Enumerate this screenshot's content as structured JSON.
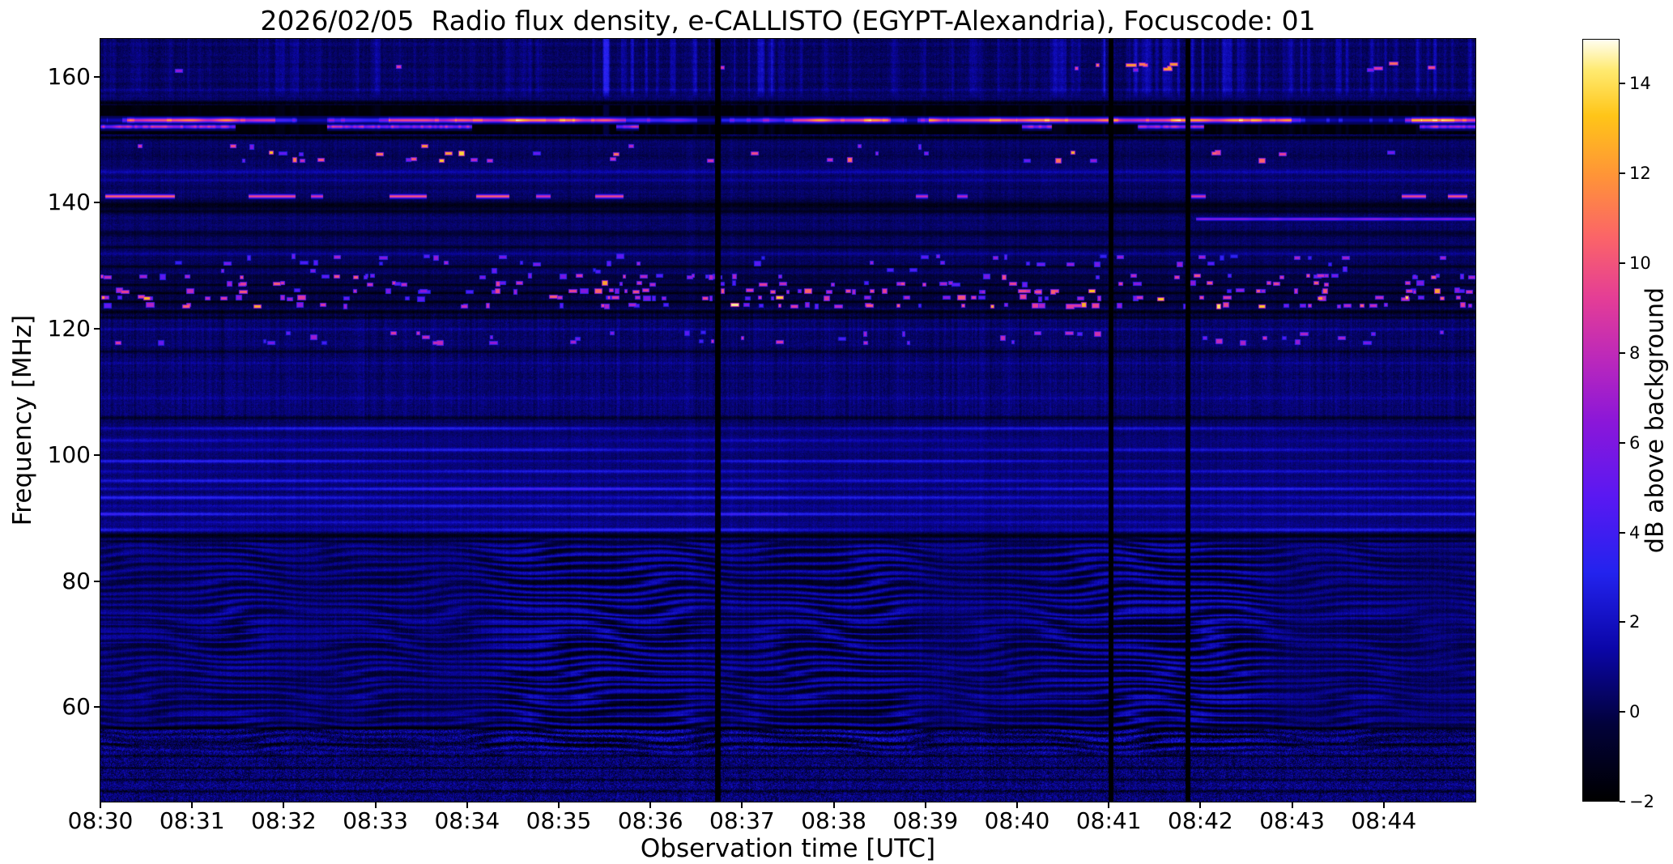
{
  "chart_data": {
    "type": "heatmap",
    "title": "2026/02/05  Radio flux density, e-CALLISTO (EGYPT-Alexandria), Focuscode: 01",
    "xlabel": "Observation time [UTC]",
    "ylabel": "Frequency [MHz]",
    "x_ticks": [
      "08:30",
      "08:31",
      "08:32",
      "08:33",
      "08:34",
      "08:35",
      "08:36",
      "08:37",
      "08:38",
      "08:39",
      "08:40",
      "08:41",
      "08:42",
      "08:43",
      "08:44"
    ],
    "x_range_minutes_after_0830": [
      0,
      15
    ],
    "y_ticks": [
      160,
      140,
      120,
      100,
      80,
      60
    ],
    "ylim_mhz": [
      45,
      166
    ],
    "grid": false,
    "colorbar": {
      "label": "dB above background",
      "ticks": [
        "14",
        "12",
        "10",
        "8",
        "6",
        "4",
        "2",
        "0",
        "−2"
      ],
      "tick_values": [
        14,
        12,
        10,
        8,
        6,
        4,
        2,
        0,
        -2
      ],
      "vmin": -2,
      "vmax": 15,
      "colormap_stops": [
        [
          0.0,
          "#000000"
        ],
        [
          0.1,
          "#02023a"
        ],
        [
          0.2,
          "#0b06a8"
        ],
        [
          0.3,
          "#2323ee"
        ],
        [
          0.4,
          "#5a18f2"
        ],
        [
          0.5,
          "#8c17d8"
        ],
        [
          0.58,
          "#bb28bb"
        ],
        [
          0.66,
          "#e43d96"
        ],
        [
          0.74,
          "#fb6468"
        ],
        [
          0.82,
          "#ff9338"
        ],
        [
          0.9,
          "#ffc518"
        ],
        [
          0.96,
          "#ffea70"
        ],
        [
          1.0,
          "#fffef0"
        ]
      ]
    },
    "render": {
      "seed": 20260205,
      "noise_floor_db": {
        "base": 0.55,
        "pixel_sd": 0.42,
        "column_sd": 0.22,
        "row_sd": 0.3
      },
      "dark_rows": [
        [
          155.9,
          0.5,
          2.2
        ],
        [
          150.4,
          0.4,
          2.2
        ],
        [
          139.6,
          0.8,
          1.8
        ],
        [
          138.7,
          0.4,
          1.4
        ],
        [
          135.2,
          0.6,
          0.9
        ],
        [
          133.0,
          0.3,
          1.1
        ],
        [
          129.9,
          0.35,
          1.3
        ],
        [
          122.7,
          0.5,
          1.9
        ],
        [
          121.8,
          0.3,
          1.4
        ],
        [
          116.4,
          0.3,
          1.1
        ],
        [
          105.9,
          0.4,
          1.4
        ],
        [
          87.2,
          0.5,
          1.9
        ],
        [
          86.3,
          0.3,
          1.3
        ],
        [
          56.6,
          0.35,
          1.9
        ],
        [
          54.0,
          0.3,
          1.5
        ],
        [
          52.2,
          0.3,
          1.5
        ],
        [
          50.3,
          0.3,
          1.5
        ],
        [
          48.4,
          0.3,
          1.4
        ],
        [
          46.6,
          0.3,
          1.3
        ],
        [
          124.3,
          0.25,
          1.4
        ],
        [
          125.7,
          0.25,
          1.4
        ],
        [
          127.0,
          0.25,
          1.4
        ]
      ],
      "bright_rows": [
        [
          144.9,
          0.4,
          1.3
        ],
        [
          143.6,
          0.3,
          0.9
        ],
        [
          131.9,
          0.35,
          0.8
        ],
        [
          119.9,
          0.3,
          0.7
        ],
        [
          114.6,
          0.35,
          0.6
        ],
        [
          109.0,
          0.4,
          0.7
        ],
        [
          158.0,
          0.3,
          0.6
        ]
      ],
      "horizontal_stripe_lines": [
        [
          88.1,
          2.2
        ],
        [
          89.3,
          1.4
        ],
        [
          90.6,
          2.6
        ],
        [
          91.9,
          1.6
        ],
        [
          93.2,
          2.0
        ],
        [
          94.6,
          2.8
        ],
        [
          95.9,
          1.8
        ],
        [
          97.4,
          1.5
        ],
        [
          99.0,
          2.2
        ],
        [
          100.8,
          1.7
        ],
        [
          102.3,
          1.3
        ],
        [
          104.2,
          1.9
        ]
      ],
      "wave_region": {
        "f_range": [
          54,
          85
        ],
        "stripe_rad_per_mhz": 5.7,
        "undulation": [
          [
            2.51,
            2.6,
            0.33
          ],
          [
            5.3,
            1.2,
            0.11
          ]
        ],
        "amplitude": 1.05
      },
      "speckle_region": {
        "f_range": [
          45,
          56.5
        ],
        "amplitude": 1.15
      },
      "texture_region": {
        "f_range": [
          106,
          122.5
        ],
        "pixel_sd": 0.45,
        "column_sd": 0.3
      },
      "band_153": {
        "black_range": [
          150.9,
          155.5
        ],
        "line_mhz": 153.15,
        "line_db": [
          9,
          15
        ],
        "secondary_mhz": 152.1
      },
      "line_137": {
        "mhz": 137.45,
        "t_start": 11.95,
        "db": 6.3
      },
      "segments_141": [
        [
          0.05,
          0.75,
          11
        ],
        [
          1.62,
          0.5,
          10
        ],
        [
          2.3,
          0.12,
          9
        ],
        [
          3.15,
          0.4,
          10.5
        ],
        [
          4.1,
          0.35,
          11
        ],
        [
          4.75,
          0.15,
          9
        ],
        [
          5.4,
          0.3,
          10
        ],
        [
          8.9,
          0.12,
          8.5
        ],
        [
          9.35,
          0.1,
          8
        ],
        [
          11.9,
          0.15,
          9
        ],
        [
          14.2,
          0.25,
          10
        ],
        [
          14.7,
          0.2,
          10.5
        ]
      ],
      "dot_bands": [
        {
          "f_rows": [
            123.7,
            124.9,
            126.0,
            127.2,
            128.3
          ],
          "count": 260,
          "db": [
            4.5,
            10.5
          ],
          "hot_fraction": 0.09,
          "hot_db": [
            12,
            14.5
          ]
        },
        {
          "f_rows": [
            129.3,
            130.4,
            131.4
          ],
          "count": 50,
          "db": [
            3.5,
            7.5
          ],
          "hot_fraction": 0.0,
          "hot_db": [
            0,
            0
          ]
        },
        {
          "f_rows": [
            117.9,
            118.6,
            119.3
          ],
          "count": 45,
          "db": [
            3.5,
            9
          ],
          "hot_fraction": 0.05,
          "hot_db": [
            11,
            13
          ]
        },
        {
          "f_rows": [
            146.8,
            147.9,
            148.9
          ],
          "count": 40,
          "db": [
            5,
            12
          ],
          "hot_fraction": 0.1,
          "hot_db": [
            12,
            14
          ]
        }
      ],
      "dots_161": {
        "f_range": [
          160.7,
          162.3
        ],
        "clusters": [
          [
            10.4,
            1.9,
            9
          ],
          [
            13.4,
            1.4,
            4
          ],
          [
            0,
            15,
            3
          ]
        ],
        "db": [
          6,
          12.5
        ]
      },
      "top_streaks": {
        "f_range": [
          156.5,
          166
        ],
        "windows": [
          [
            0,
            5.3,
            0.35
          ],
          [
            5.3,
            7.35,
            1.0
          ],
          [
            7.35,
            10.2,
            0.5
          ],
          [
            10.2,
            15,
            0.85
          ]
        ]
      },
      "stripe_band_dark": [
        [
          123.4,
          128.8,
          -0.55
        ]
      ],
      "data_gaps_min": [
        [
          6.73,
          0.05
        ],
        [
          11.02,
          0.04
        ],
        [
          11.86,
          0.04
        ]
      ]
    }
  }
}
